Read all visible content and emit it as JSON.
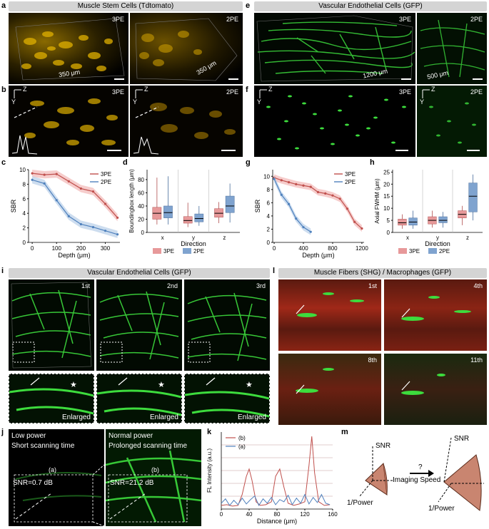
{
  "panels": {
    "a": "a",
    "b": "b",
    "c": "c",
    "d": "d",
    "e": "e",
    "f": "f",
    "g": "g",
    "h": "h",
    "i": "i",
    "j": "j",
    "k": "k",
    "l": "l",
    "m": "m"
  },
  "headers": {
    "muscle_stem": "Muscle Stem Cells (Tdtomato)",
    "vascular_top": "Vascular Endothelial Cells (GFP)",
    "vascular_i": "Vascular Endothelial Cells (GFP)",
    "fibers": "Muscle Fibers (SHG) / Macrophages (GFP)"
  },
  "tags": {
    "a_3pe": "3PE",
    "a_2pe": "2PE",
    "a_scale1": "350 μm",
    "a_scale2": "350 μm",
    "b_3pe": "3PE",
    "b_2pe": "2PE",
    "e_3pe": "3PE",
    "e_2pe": "2PE",
    "e_scale1": "1200 μm",
    "e_scale2": "500 μm",
    "f_3pe": "3PE",
    "f_2pe": "2PE",
    "axis_z": "Z",
    "axis_y": "Y",
    "i_1": "1st",
    "i_2": "2nd",
    "i_3": "3rd",
    "enlarged": "Enlarged",
    "l_1": "1st",
    "l_4": "4th",
    "l_8": "8th",
    "l_11": "11th",
    "j_a1": "Low power",
    "j_a2": "Short scanning time",
    "j_b1": "Normal power",
    "j_b2": "Prolonged scanning time",
    "j_a_label": "(a)",
    "j_b_label": "(b)",
    "j_snr_a": "SNR=0.7 dB",
    "j_snr_b": "SNR=21.2 dB",
    "m_snr": "SNR",
    "m_power": "1/Power",
    "m_speed": "Imaging\nSpeed",
    "m_q": "?"
  },
  "colors": {
    "pe3": "#c0504d",
    "pe3_fill": "#f2b8b6",
    "pe2": "#4f81bd",
    "pe2_fill": "#b8cfe8",
    "gold": "#e8b800",
    "green": "#3ddc3d",
    "red": "#c0301e",
    "cone": "#c98570"
  },
  "chart_data": [
    {
      "id": "c",
      "type": "line",
      "xlabel": "Depth (μm)",
      "ylabel": "SBR",
      "xlim": [
        -15,
        360
      ],
      "ylim": [
        0,
        10
      ],
      "xticks": [
        0,
        100,
        200,
        300
      ],
      "yticks": [
        0,
        2,
        4,
        6,
        8,
        10
      ],
      "series": [
        {
          "name": "3PE",
          "x": [
            0,
            50,
            100,
            150,
            200,
            250,
            300,
            350
          ],
          "y": [
            9.5,
            9.3,
            9.4,
            8.4,
            7.4,
            7.0,
            5.3,
            3.4
          ]
        },
        {
          "name": "2PE",
          "x": [
            0,
            50,
            100,
            150,
            200,
            250,
            300,
            350
          ],
          "y": [
            8.6,
            8.1,
            5.8,
            3.6,
            2.5,
            2.1,
            1.6,
            1.1
          ]
        }
      ]
    },
    {
      "id": "d",
      "type": "box",
      "xlabel": "Direction",
      "ylabel": "Boundingbox length (μm)",
      "categories": [
        "x",
        "y",
        "z"
      ],
      "ylim": [
        0,
        95
      ],
      "yticks": [
        0,
        20,
        40,
        60,
        80
      ],
      "series": [
        {
          "name": "3PE",
          "boxes": [
            [
              12,
              20,
              29,
              38,
              83
            ],
            [
              8,
              14,
              18,
              24,
              45
            ],
            [
              14,
              23,
              29,
              36,
              46
            ]
          ]
        },
        {
          "name": "2PE",
          "boxes": [
            [
              12,
              22,
              30,
              40,
              85
            ],
            [
              10,
              16,
              21,
              28,
              40
            ],
            [
              15,
              30,
              40,
              55,
              74
            ]
          ]
        }
      ]
    },
    {
      "id": "g",
      "type": "line",
      "xlabel": "Depth (μm)",
      "ylabel": "SBR",
      "xlim": [
        -20,
        1230
      ],
      "ylim": [
        0,
        11
      ],
      "xticks": [
        0,
        400,
        800,
        1200
      ],
      "yticks": [
        0,
        2,
        4,
        6,
        8,
        10
      ],
      "series": [
        {
          "name": "3PE",
          "x": [
            0,
            100,
            200,
            300,
            400,
            500,
            600,
            700,
            800,
            900,
            1000,
            1100,
            1200
          ],
          "y": [
            9.8,
            9.4,
            9.1,
            8.8,
            8.6,
            8.4,
            7.6,
            7.4,
            7.1,
            6.6,
            5.1,
            3.1,
            2.1
          ]
        },
        {
          "name": "2PE",
          "x": [
            0,
            100,
            200,
            300,
            400,
            500
          ],
          "y": [
            9.6,
            7.2,
            5.8,
            3.6,
            2.3,
            1.6
          ]
        }
      ]
    },
    {
      "id": "h",
      "type": "box",
      "xlabel": "Direction",
      "ylabel": "Axial FWHM (μm)",
      "categories": [
        "x",
        "y",
        "z"
      ],
      "ylim": [
        0,
        26
      ],
      "yticks": [
        0,
        5,
        10,
        15,
        20,
        25
      ],
      "series": [
        {
          "name": "3PE",
          "boxes": [
            [
              1.5,
              3,
              4,
              5.5,
              7.5
            ],
            [
              2,
              3.5,
              5,
              6.5,
              9
            ],
            [
              3,
              6,
              7.5,
              9,
              11
            ]
          ]
        },
        {
          "name": "2PE",
          "boxes": [
            [
              1.5,
              3,
              4.3,
              6,
              9
            ],
            [
              2,
              4,
              5,
              6.5,
              8.5
            ],
            [
              5,
              8.5,
              15,
              20.5,
              24
            ]
          ]
        }
      ]
    },
    {
      "id": "k",
      "type": "line",
      "xlabel": "Distance (μm)",
      "ylabel": "FL Intensity (a.u.)",
      "xlim": [
        0,
        160
      ],
      "xticks": [
        0,
        40,
        80,
        120,
        160
      ],
      "series": [
        {
          "name": "(b)",
          "x": [
            0,
            8,
            16,
            24,
            30,
            36,
            40,
            44,
            50,
            56,
            64,
            72,
            78,
            84,
            90,
            96,
            104,
            112,
            120,
            126,
            130,
            134,
            140,
            148,
            156
          ],
          "y": [
            0.05,
            0.06,
            0.04,
            0.05,
            0.2,
            0.45,
            0.55,
            0.4,
            0.1,
            0.05,
            0.06,
            0.1,
            0.45,
            0.55,
            0.3,
            0.08,
            0.05,
            0.07,
            0.1,
            0.6,
            1.0,
            0.5,
            0.1,
            0.05,
            0.06
          ]
        },
        {
          "name": "(a)",
          "x": [
            0,
            6,
            12,
            18,
            24,
            30,
            36,
            42,
            48,
            54,
            60,
            66,
            72,
            78,
            84,
            90,
            96,
            102,
            108,
            114,
            120,
            126,
            132,
            138,
            144,
            150,
            156
          ],
          "y": [
            0.08,
            0.14,
            0.05,
            0.12,
            0.06,
            0.15,
            0.07,
            0.13,
            0.18,
            0.05,
            0.14,
            0.08,
            0.16,
            0.06,
            0.13,
            0.1,
            0.19,
            0.06,
            0.15,
            0.08,
            0.2,
            0.07,
            0.16,
            0.09,
            0.2,
            0.08,
            0.06
          ]
        }
      ]
    }
  ]
}
